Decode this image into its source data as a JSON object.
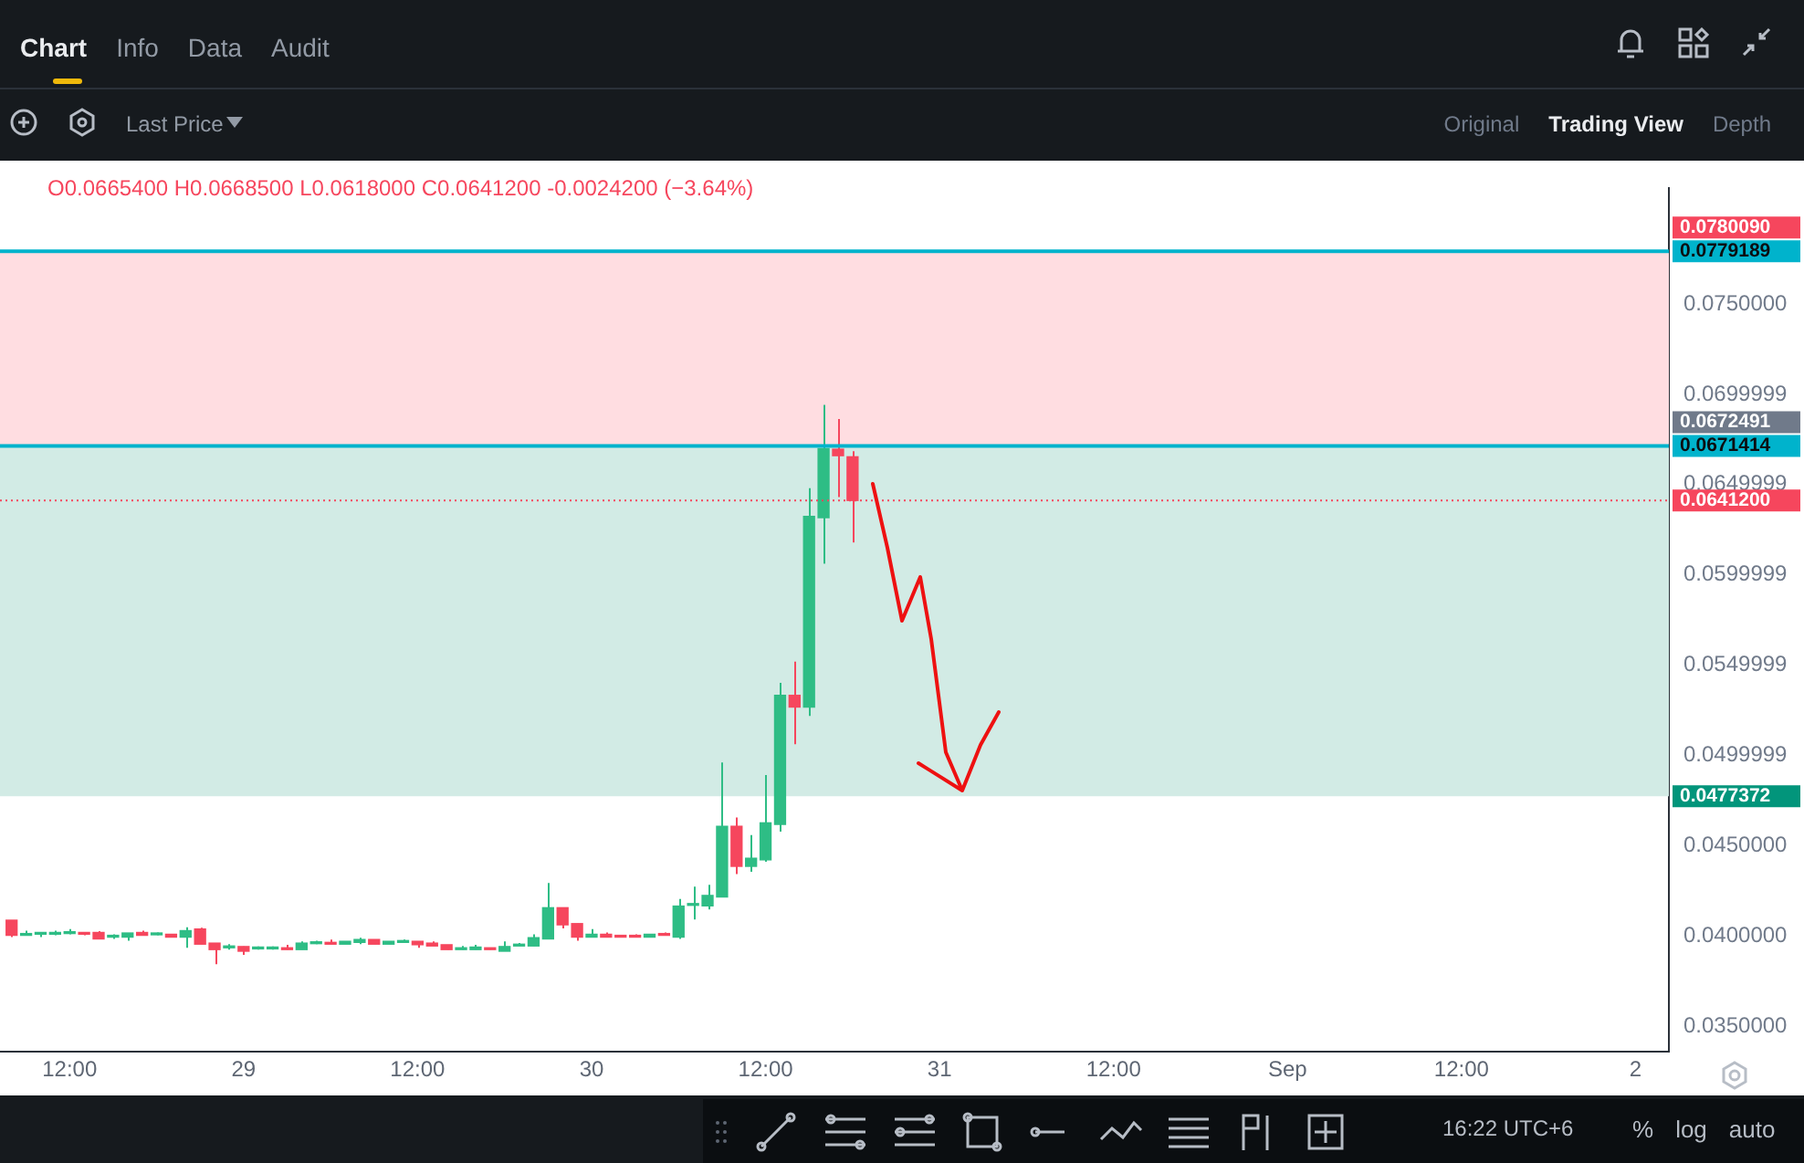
{
  "chart_data": {
    "type": "candlestick",
    "x": [
      "--08-28T08:00",
      "--08-28T09:00",
      "--08-28T10:00",
      "--08-28T11:00",
      "--08-28T12:00",
      "--08-28T13:00",
      "--08-28T14:00",
      "--08-28T15:00",
      "--08-28T16:00",
      "--08-28T17:00",
      "--08-28T18:00",
      "--08-28T19:00",
      "--08-28T20:00",
      "--08-28T21:00",
      "--08-28T22:00",
      "--08-28T23:00",
      "--08-29T00:00",
      "--08-29T01:00",
      "--08-29T02:00",
      "--08-29T03:00",
      "--08-29T04:00",
      "--08-29T05:00",
      "--08-29T06:00",
      "--08-29T07:00",
      "--08-29T08:00",
      "--08-29T09:00",
      "--08-29T10:00",
      "--08-29T11:00",
      "--08-29T12:00",
      "--08-29T13:00",
      "--08-29T14:00",
      "--08-29T15:00",
      "--08-29T16:00",
      "--08-29T17:00",
      "--08-29T18:00",
      "--08-29T19:00",
      "--08-29T20:00",
      "--08-29T21:00",
      "--08-29T22:00",
      "--08-29T23:00",
      "--08-30T00:00",
      "--08-30T01:00",
      "--08-30T02:00",
      "--08-30T03:00",
      "--08-30T04:00",
      "--08-30T05:00",
      "--08-30T06:00",
      "--08-30T07:00",
      "--08-30T08:00",
      "--08-30T09:00",
      "--08-30T10:00",
      "--08-30T11:00",
      "--08-30T12:00",
      "--08-30T13:00",
      "--08-30T14:00",
      "--08-30T15:00",
      "--08-30T16:00",
      "--08-30T17:00",
      "--08-30T18:00"
    ],
    "ohlc": [
      [
        0.04088,
        0.04088,
        0.03994,
        0.04004
      ],
      [
        0.04004,
        0.0403,
        0.04004,
        0.0401
      ],
      [
        0.0401,
        0.04017,
        0.03994,
        0.04017
      ],
      [
        0.0401,
        0.0403,
        0.04004,
        0.0402
      ],
      [
        0.04014,
        0.04039,
        0.0401,
        0.04023
      ],
      [
        0.0402,
        0.0402,
        0.04004,
        0.0401
      ],
      [
        0.0402,
        0.04027,
        0.03984,
        0.03984
      ],
      [
        0.03994,
        0.0401,
        0.03984,
        0.04004
      ],
      [
        0.03994,
        0.04017,
        0.03974,
        0.04017
      ],
      [
        0.0402,
        0.0403,
        0.04004,
        0.04004
      ],
      [
        0.04007,
        0.0402,
        0.04004,
        0.04014
      ],
      [
        0.0401,
        0.0401,
        0.03994,
        0.03994
      ],
      [
        0.03994,
        0.04049,
        0.03935,
        0.0403
      ],
      [
        0.04039,
        0.04046,
        0.03955,
        0.03955
      ],
      [
        0.03961,
        0.03961,
        0.03844,
        0.03925
      ],
      [
        0.03935,
        0.03955,
        0.03925,
        0.03942
      ],
      [
        0.03942,
        0.03942,
        0.03896,
        0.03916
      ],
      [
        0.03929,
        0.03942,
        0.03925,
        0.03935
      ],
      [
        0.03929,
        0.03942,
        0.03925,
        0.03935
      ],
      [
        0.03932,
        0.03952,
        0.03925,
        0.03925
      ],
      [
        0.03925,
        0.03971,
        0.03925,
        0.03961
      ],
      [
        0.03958,
        0.03974,
        0.03955,
        0.03965
      ],
      [
        0.03965,
        0.03981,
        0.03955,
        0.03955
      ],
      [
        0.03955,
        0.03971,
        0.03955,
        0.03971
      ],
      [
        0.03965,
        0.03991,
        0.03955,
        0.03981
      ],
      [
        0.03981,
        0.03981,
        0.03955,
        0.03955
      ],
      [
        0.03955,
        0.03971,
        0.03955,
        0.03971
      ],
      [
        0.03965,
        0.03981,
        0.03965,
        0.03971
      ],
      [
        0.03971,
        0.03971,
        0.03935,
        0.03952
      ],
      [
        0.03961,
        0.03971,
        0.03945,
        0.03945
      ],
      [
        0.03952,
        0.03952,
        0.03925,
        0.03925
      ],
      [
        0.03925,
        0.03945,
        0.03925,
        0.03935
      ],
      [
        0.03925,
        0.03952,
        0.03925,
        0.03939
      ],
      [
        0.03932,
        0.03932,
        0.03925,
        0.03925
      ],
      [
        0.03916,
        0.03971,
        0.03916,
        0.03942
      ],
      [
        0.03945,
        0.03961,
        0.03945,
        0.03952
      ],
      [
        0.03945,
        0.0401,
        0.03945,
        0.03991
      ],
      [
        0.03984,
        0.04294,
        0.03984,
        0.04157
      ],
      [
        0.04157,
        0.04157,
        0.04043,
        0.04062
      ],
      [
        0.04069,
        0.04069,
        0.03974,
        0.03994
      ],
      [
        0.03994,
        0.04039,
        0.03994,
        0.0401
      ],
      [
        0.0401,
        0.0402,
        0.03994,
        0.03994
      ],
      [
        0.04001,
        0.04001,
        0.03994,
        0.03994
      ],
      [
        0.04001,
        0.0401,
        0.03994,
        0.03994
      ],
      [
        0.03994,
        0.0401,
        0.03994,
        0.0401
      ],
      [
        0.0401,
        0.0402,
        0.04004,
        0.04004
      ],
      [
        0.03994,
        0.04205,
        0.03984,
        0.04166
      ],
      [
        0.0417,
        0.04274,
        0.04092,
        0.04176
      ],
      [
        0.04167,
        0.04284,
        0.04147,
        0.04225
      ],
      [
        0.04216,
        0.04961,
        0.04216,
        0.04608
      ],
      [
        0.04608,
        0.04657,
        0.04343,
        0.04386
      ],
      [
        0.04386,
        0.04559,
        0.04356,
        0.04431
      ],
      [
        0.04422,
        0.04892,
        0.04412,
        0.04627
      ],
      [
        0.04618,
        0.05402,
        0.04578,
        0.05333
      ],
      [
        0.05333,
        0.0552,
        0.05062,
        0.05268
      ],
      [
        0.05268,
        0.0648,
        0.05219,
        0.06324
      ],
      [
        0.06317,
        0.06941,
        0.06062,
        0.06699
      ],
      [
        0.06696,
        0.06863,
        0.06431,
        0.0666
      ],
      [
        0.06654,
        0.06685,
        0.0618,
        0.06412
      ]
    ],
    "xlim": [
      "--08-28T07:12",
      "--09-02T02:18"
    ],
    "xticks": [
      {
        "value": "--08-28T12:00",
        "label": "12:00"
      },
      {
        "value": "--08-29T00:00",
        "label": "29"
      },
      {
        "value": "--08-29T12:00",
        "label": "12:00"
      },
      {
        "value": "--08-30T00:00",
        "label": "30"
      },
      {
        "value": "--08-30T12:00",
        "label": "12:00"
      },
      {
        "value": "--08-31T00:00",
        "label": "31"
      },
      {
        "value": "--08-31T12:00",
        "label": "12:00"
      },
      {
        "value": "--09-01T00:00",
        "label": "Sep"
      },
      {
        "value": "--09-01T12:00",
        "label": "12:00"
      },
      {
        "value": "--09-02T00:00",
        "label": "2"
      }
    ],
    "ylim": [
      0.0336,
      0.0814
    ],
    "yticks": [
      {
        "value": 0.035,
        "label": "0.0350000"
      },
      {
        "value": 0.04,
        "label": "0.0400000"
      },
      {
        "value": 0.045,
        "label": "0.0450000"
      },
      {
        "value": 0.0499999,
        "label": "0.0499999"
      },
      {
        "value": 0.0549999,
        "label": "0.0549999"
      },
      {
        "value": 0.0599999,
        "label": "0.0599999"
      },
      {
        "value": 0.0649999,
        "label": "0.0649999"
      },
      {
        "value": 0.0699999,
        "label": "0.0699999"
      },
      {
        "value": 0.075,
        "label": "0.0750000"
      }
    ],
    "bands": [
      {
        "axis": "y",
        "from": 0.0671414,
        "to": 0.0779189,
        "color": "#ffdde1"
      },
      {
        "axis": "y",
        "from": 0.0477372,
        "to": 0.0671414,
        "color": "#d2ebe5",
        "label": "0.0477372"
      }
    ],
    "ref_lines": [
      {
        "axis": "y",
        "value": 0.0779189,
        "label": "0.0779189",
        "color": "#00b3cc"
      },
      {
        "axis": "y",
        "value": 0.0671414,
        "label": "0.0671414",
        "color": "#00b3cc"
      },
      {
        "axis": "y",
        "value": 0.06412,
        "label": "0.0641200",
        "color": "#f6465d",
        "line_style": "dotted"
      }
    ],
    "annotations": [
      "O0.0665400 H0.0668500 L0.0618000 C0.0641200 -0.0024200 (−3.64%)",
      "Chart",
      "Info",
      "Data",
      "Audit",
      "Last Price",
      "Original",
      "Trading View",
      "Depth",
      "16:22 UTC+6",
      "%",
      "log",
      "auto",
      "0.0780090",
      "0.0672491"
    ],
    "legend": false
  }
}
